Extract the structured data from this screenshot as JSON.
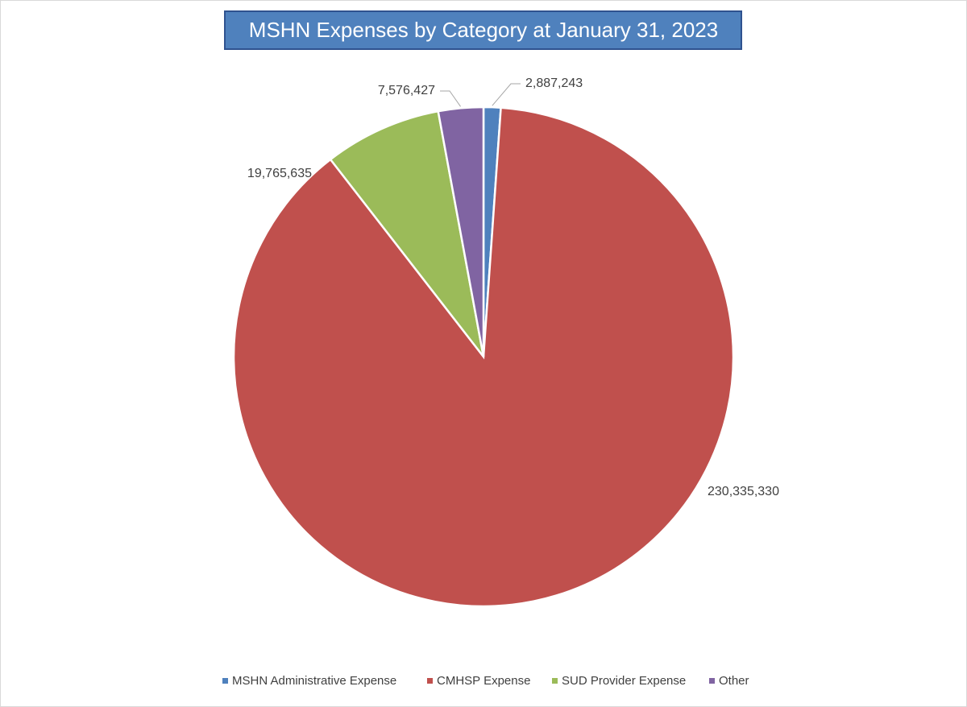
{
  "chart_data": {
    "type": "pie",
    "title": "MSHN Expenses by Category at January 31, 2023",
    "categories": [
      "MSHN Administrative Expense",
      "CMHSP Expense",
      "SUD Provider Expense",
      "Other"
    ],
    "values": [
      2887243,
      230335330,
      19765635,
      7576427
    ],
    "value_labels": [
      "2,887,243",
      "230,335,330",
      "19,765,635",
      "7,576,427"
    ],
    "colors": [
      "#4f81bd",
      "#c0504d",
      "#9bbb59",
      "#8064a2"
    ],
    "legend": "bottom"
  }
}
